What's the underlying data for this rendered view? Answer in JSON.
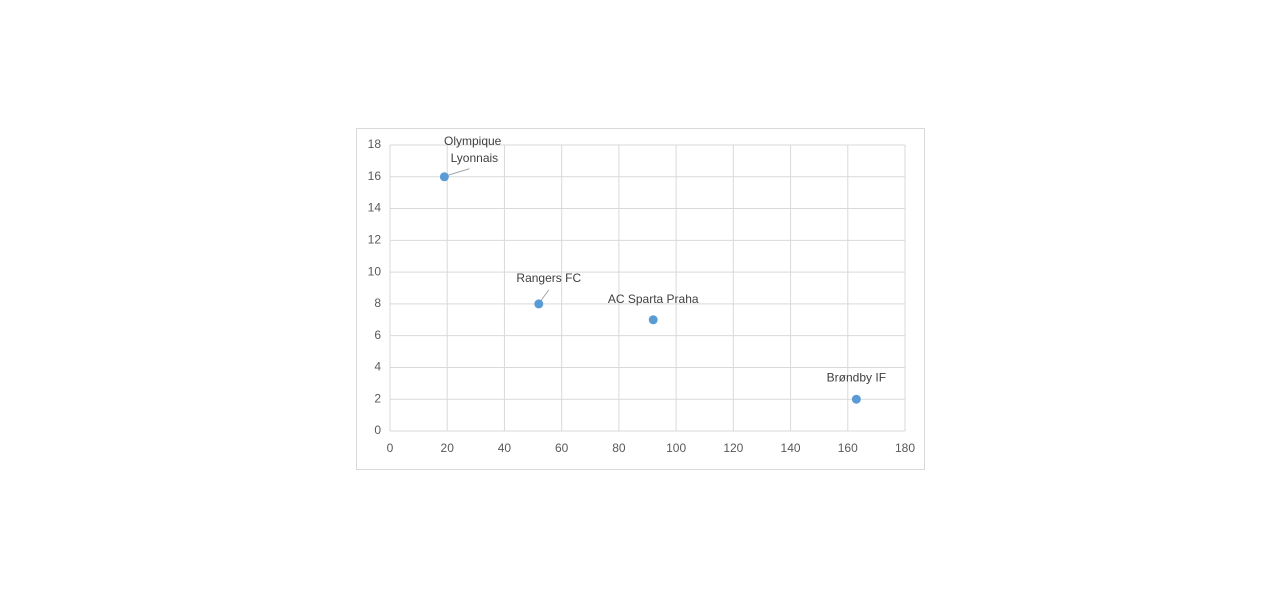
{
  "chart_data": {
    "type": "scatter",
    "labels": [
      "Olympique Lyonnais",
      "Rangers FC",
      "AC Sparta Praha",
      "Brøndby IF"
    ],
    "x": [
      19,
      52,
      92,
      163
    ],
    "values": [
      16,
      8,
      7,
      2
    ],
    "color": "#5b9bd5",
    "xlim": [
      0,
      180
    ],
    "xticks": [
      0,
      20,
      40,
      60,
      80,
      100,
      120,
      140,
      160,
      180
    ],
    "ylim": [
      0,
      18
    ],
    "yticks": [
      0,
      2,
      4,
      6,
      8,
      10,
      12,
      14,
      16,
      18
    ],
    "grid": true
  }
}
